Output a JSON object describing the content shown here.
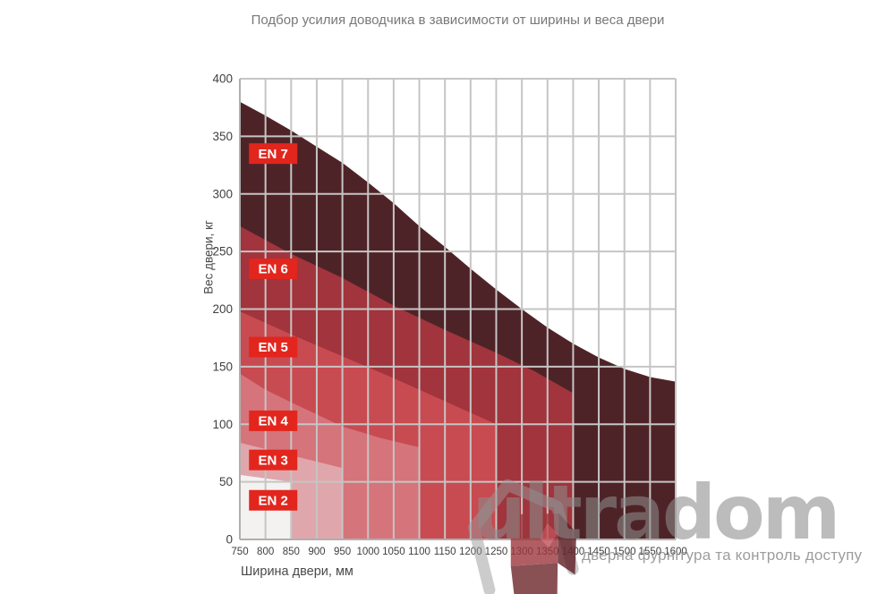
{
  "title": "Подбор усилия доводчика в зависимости от ширины и веса двери",
  "chart_data": {
    "type": "area",
    "title": "Подбор усилия доводчика в зависимости от ширины и веса двери",
    "xlabel": "Ширина двери, мм",
    "ylabel": "Вес двери, кг",
    "xlim": [
      750,
      1600
    ],
    "ylim": [
      0,
      400
    ],
    "x_ticks": [
      750,
      800,
      850,
      900,
      950,
      1000,
      1050,
      1100,
      1150,
      1200,
      1250,
      1300,
      1350,
      1400,
      1450,
      1500,
      1550,
      1600
    ],
    "y_ticks": [
      0,
      50,
      100,
      150,
      200,
      250,
      300,
      350,
      400
    ],
    "grid": true,
    "legend_position": "none",
    "grid_color": "#c6c5c4",
    "axis_color": "#b0afae",
    "tick_color": "#3f3f3f",
    "zone_label_style": {
      "bg": "#e2261d",
      "text": "#ffffff"
    },
    "zones": [
      {
        "label": "EN 7",
        "color": "#4e2327",
        "max_width_mm": 1600,
        "label_at_mm_kg": [
          815,
          335
        ],
        "boundary_mm_kg": [
          [
            750,
            380
          ],
          [
            800,
            368
          ],
          [
            850,
            355
          ],
          [
            900,
            341
          ],
          [
            950,
            327
          ],
          [
            1000,
            310
          ],
          [
            1050,
            292
          ],
          [
            1100,
            272
          ],
          [
            1150,
            254
          ],
          [
            1200,
            235
          ],
          [
            1250,
            217
          ],
          [
            1300,
            200
          ],
          [
            1350,
            184
          ],
          [
            1400,
            170
          ],
          [
            1450,
            158
          ],
          [
            1500,
            148
          ],
          [
            1550,
            141
          ],
          [
            1600,
            137
          ]
        ]
      },
      {
        "label": "EN 6",
        "color": "#a1343c",
        "max_width_mm": 1400,
        "label_at_mm_kg": [
          815,
          235
        ],
        "boundary_mm_kg": [
          [
            750,
            272
          ],
          [
            850,
            248
          ],
          [
            950,
            227
          ],
          [
            1050,
            203
          ],
          [
            1150,
            182
          ],
          [
            1250,
            162
          ],
          [
            1325,
            146
          ],
          [
            1400,
            127
          ]
        ]
      },
      {
        "label": "EN 5",
        "color": "#c84b51",
        "max_width_mm": 1250,
        "label_at_mm_kg": [
          815,
          167
        ],
        "boundary_mm_kg": [
          [
            750,
            198
          ],
          [
            850,
            178
          ],
          [
            950,
            159
          ],
          [
            1050,
            140
          ],
          [
            1150,
            120
          ],
          [
            1250,
            100
          ]
        ]
      },
      {
        "label": "EN 4",
        "color": "#d5747b",
        "max_width_mm": 1100,
        "label_at_mm_kg": [
          815,
          103
        ],
        "boundary_mm_kg": [
          [
            750,
            144
          ],
          [
            800,
            130
          ],
          [
            850,
            119
          ],
          [
            950,
            98
          ],
          [
            1025,
            88
          ],
          [
            1100,
            80
          ]
        ]
      },
      {
        "label": "EN 3",
        "color": "#dfa7ab",
        "max_width_mm": 950,
        "label_at_mm_kg": [
          815,
          69
        ],
        "boundary_mm_kg": [
          [
            750,
            84
          ],
          [
            850,
            73
          ],
          [
            950,
            62
          ]
        ]
      },
      {
        "label": "EN 2",
        "color": "#f4f2f1",
        "max_width_mm": 850,
        "label_at_mm_kg": [
          815,
          34
        ],
        "boundary_mm_kg": [
          [
            750,
            56
          ],
          [
            850,
            50
          ]
        ]
      }
    ]
  },
  "watermark": {
    "brand": "ultradom",
    "tagline": "дверна фурнітура та контроль доступу",
    "color": "#8c8c8c",
    "logo_icon": "house-cube-logo"
  }
}
